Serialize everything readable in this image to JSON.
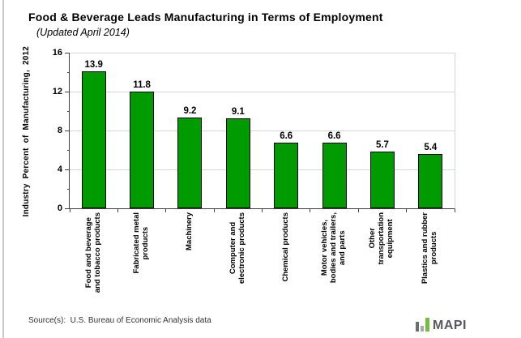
{
  "header": {
    "title": "Food & Beverage Leads Manufacturing in Terms of Employment",
    "subtitle": "(Updated April 2014)"
  },
  "chart_data": {
    "type": "bar",
    "title": "Food & Beverage Leads Manufacturing in Terms of Employment",
    "subtitle": "(Updated April 2014)",
    "ylabel": "Industry Percent of Manufacturing, 2012",
    "categories": [
      "Food and beverage\nand tobacco products",
      "Fabricated metal\nproducts",
      "Machinery",
      "Computer and\nelectronic products",
      "Chemical products",
      "Motor vehicles,\nbodies and trailers,\nand parts",
      "Other\ntransportation\nequipment",
      "Plastics and rubber\nproducts"
    ],
    "values": [
      13.9,
      11.8,
      9.2,
      9.1,
      6.6,
      6.6,
      5.7,
      5.4
    ],
    "ylim": [
      0,
      16
    ],
    "yticks": [
      0,
      4,
      8,
      12,
      16
    ],
    "yticks_minor": [
      2,
      6,
      10,
      14
    ],
    "grid": true,
    "legend": "none",
    "bar_color": "#009b00",
    "bar_border_color": "#000000"
  },
  "footer": {
    "source": "Source(s):  U.S. Bureau of Economic Analysis data",
    "logo": {
      "text": "MAPI",
      "colors": {
        "dark": "#6d6e71",
        "gray": "#a7a9ac",
        "green": "#72bf44",
        "text": "#58595b"
      }
    }
  }
}
